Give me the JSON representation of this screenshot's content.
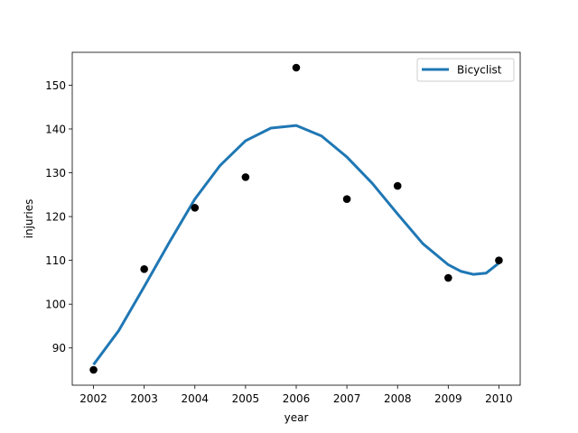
{
  "chart_data": {
    "type": "scatter",
    "title": "",
    "xlabel": "year",
    "ylabel": "injuries",
    "xlim": [
      2001.58,
      2010.42
    ],
    "ylim": [
      81.5,
      157.5
    ],
    "x_ticks": [
      2002,
      2003,
      2004,
      2005,
      2006,
      2007,
      2008,
      2009,
      2010
    ],
    "y_ticks": [
      90,
      100,
      110,
      120,
      130,
      140,
      150
    ],
    "grid": false,
    "legend": {
      "placement": "top-right",
      "entries": [
        "Bicyclist"
      ]
    },
    "points": {
      "color": "#000000",
      "x": [
        2002,
        2003,
        2004,
        2005,
        2006,
        2007,
        2008,
        2009,
        2010
      ],
      "y": [
        85,
        108,
        122,
        129,
        154,
        124,
        127,
        106,
        110
      ]
    },
    "series": [
      {
        "name": "Bicyclist",
        "color": "#1f77b4",
        "x": [
          2002,
          2002.5,
          2003,
          2003.5,
          2004,
          2004.5,
          2005,
          2005.5,
          2006,
          2006.5,
          2007,
          2007.5,
          2008,
          2008.5,
          2009,
          2009.25,
          2009.5,
          2009.75,
          2010
        ],
        "y": [
          86.2,
          94.0,
          104.0,
          114.2,
          124.0,
          131.7,
          137.3,
          140.2,
          140.8,
          138.4,
          133.6,
          127.6,
          120.6,
          113.8,
          109.0,
          107.5,
          106.8,
          107.1,
          109.4
        ]
      }
    ]
  }
}
